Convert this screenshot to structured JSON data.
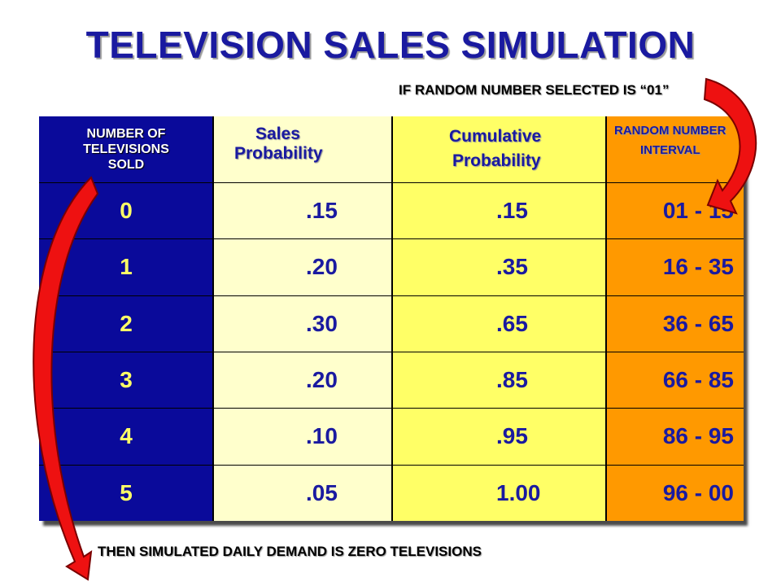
{
  "title": "TELEVISION SALES SIMULATION",
  "note_top": "IF RANDOM NUMBER SELECTED IS “01”",
  "note_bottom": "THEN SIMULATED DAILY DEMAND IS ZERO TELEVISIONS",
  "table": {
    "headers": {
      "number_sold": [
        "NUMBER OF",
        "TELEVISIONS",
        "SOLD"
      ],
      "sales_probability": [
        "Sales",
        "Probability"
      ],
      "cumulative_probability": [
        "Cumulative",
        "Probability"
      ],
      "random_interval": [
        "RANDOM NUMBER",
        "INTERVAL"
      ]
    },
    "rows": [
      {
        "sold": "0",
        "prob": ".15",
        "cum": ".15",
        "interval": "01 - 15"
      },
      {
        "sold": "1",
        "prob": ".20",
        "cum": ".35",
        "interval": "16 - 35"
      },
      {
        "sold": "2",
        "prob": ".30",
        "cum": ".65",
        "interval": "36 - 65"
      },
      {
        "sold": "3",
        "prob": ".20",
        "cum": ".85",
        "interval": "66 - 85"
      },
      {
        "sold": "4",
        "prob": ".10",
        "cum": ".95",
        "interval": "86 - 95"
      },
      {
        "sold": "5",
        "prob": ".05",
        "cum": "1.00",
        "interval": "96 - 00"
      }
    ]
  },
  "colors": {
    "title": "#1a1aa0",
    "col_sold_bg": "#0a0a9a",
    "col_prob_bg": "#ffffcc",
    "col_cum_bg": "#ffff66",
    "col_interval_bg": "#ff9900",
    "arrow": "#ee1111"
  },
  "icons": [
    "curved-arrow-right",
    "curved-arrow-left"
  ]
}
